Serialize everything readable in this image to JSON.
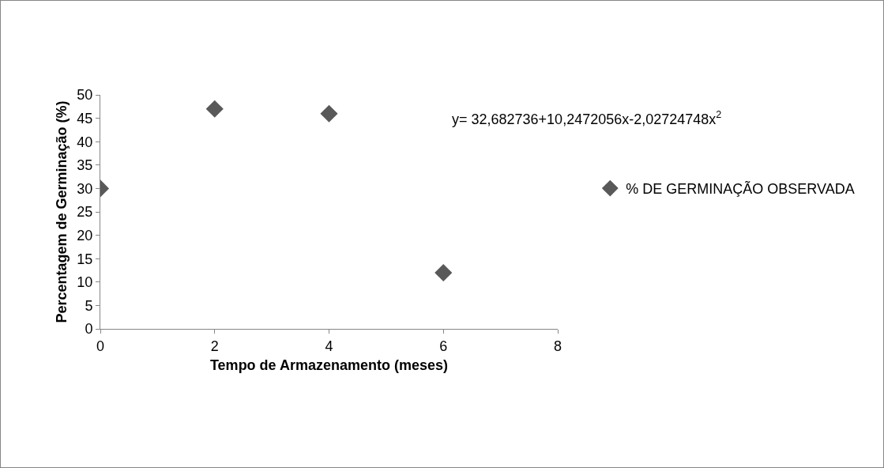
{
  "chart_data": {
    "type": "scatter",
    "xlabel": "Tempo de Armazenamento (meses)",
    "ylabel": "Percentagem de Germinação (%)",
    "annotations": [
      "y= 32,682736+10,2472056x-2,02724748x$^{2}$"
    ],
    "x": [
      0,
      2,
      4,
      6
    ],
    "series": [
      {
        "name": "% DE GERMINAÇÃO OBSERVADA",
        "color": "#595959",
        "values": [
          30,
          47,
          46,
          12
        ]
      }
    ],
    "xlim": [
      0,
      8
    ],
    "xticks": [
      0,
      2,
      4,
      6,
      8
    ],
    "ylim": [
      0,
      50
    ],
    "yticks": [
      0,
      5,
      10,
      15,
      20,
      25,
      30,
      35,
      40,
      45,
      50
    ],
    "grid": false,
    "legend": "right",
    "marker": "diamond"
  }
}
